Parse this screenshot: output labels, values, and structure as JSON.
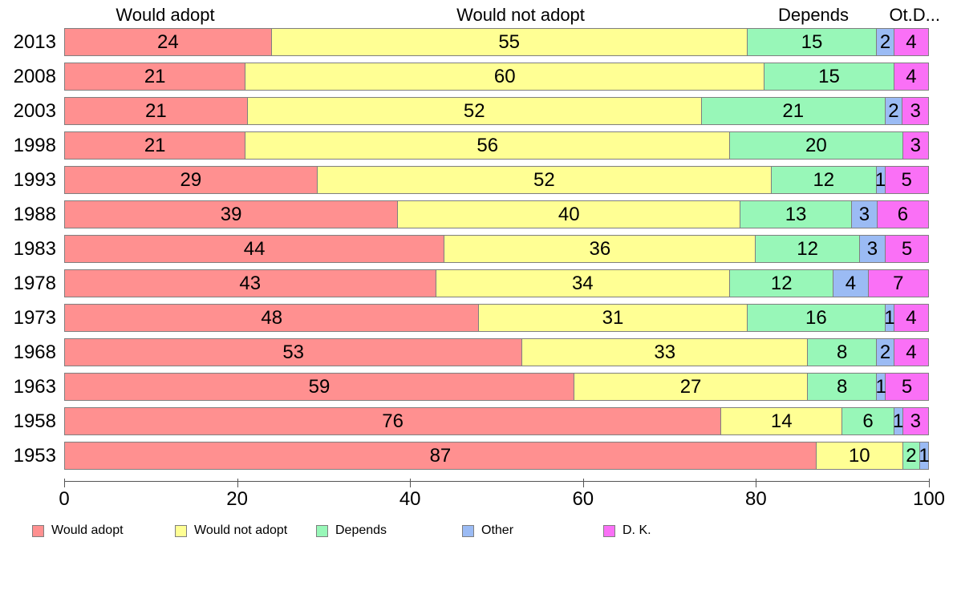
{
  "chart_data": {
    "type": "bar",
    "orientation": "horizontal-stacked",
    "title": "",
    "xlabel": "",
    "ylabel": "",
    "xlim": [
      0,
      100
    ],
    "grid": false,
    "categories": [
      "2013",
      "2008",
      "2003",
      "1998",
      "1993",
      "1988",
      "1983",
      "1978",
      "1973",
      "1968",
      "1963",
      "1958",
      "1953"
    ],
    "series": [
      {
        "name": "Would adopt",
        "color": "#FF9090",
        "values": [
          24,
          21,
          21,
          21,
          29,
          39,
          44,
          43,
          48,
          53,
          59,
          76,
          87
        ]
      },
      {
        "name": "Would not adopt",
        "color": "#FFFF94",
        "values": [
          55,
          60,
          52,
          56,
          52,
          40,
          36,
          34,
          31,
          33,
          27,
          14,
          10
        ]
      },
      {
        "name": "Depends",
        "color": "#98F7B8",
        "values": [
          15,
          15,
          21,
          20,
          12,
          13,
          12,
          12,
          16,
          8,
          8,
          6,
          2
        ]
      },
      {
        "name": "Other",
        "color": "#9BBBF4",
        "values": [
          2,
          0,
          2,
          0,
          1,
          3,
          3,
          4,
          1,
          2,
          1,
          1,
          1
        ]
      },
      {
        "name": "D. K.",
        "color": "#FA70F6",
        "values": [
          4,
          4,
          3,
          3,
          5,
          6,
          5,
          7,
          4,
          4,
          5,
          3,
          0
        ]
      }
    ],
    "column_headers": [
      "Would adopt",
      "Would not adopt",
      "Depends",
      "Ot.D..."
    ],
    "x_axis": {
      "ticks": [
        0,
        20,
        40,
        60,
        80,
        100
      ]
    },
    "legend": {
      "position": "bottom",
      "labels": [
        "Would adopt",
        "Would not adopt",
        "Depends",
        "Other",
        "D. K."
      ]
    },
    "segment_border_color": "#7f7f7f"
  }
}
